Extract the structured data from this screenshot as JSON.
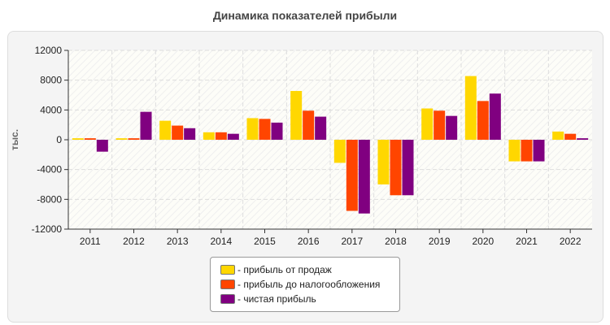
{
  "chart_data": {
    "type": "bar",
    "title": "Динамика показателей прибыли",
    "ylabel": "тыс.",
    "xlabel": "",
    "ylim": [
      -12000,
      12000
    ],
    "yticks": [
      12000,
      8000,
      4000,
      0,
      -4000,
      -8000,
      -12000
    ],
    "grid": true,
    "legend_position": "bottom",
    "categories": [
      "2011",
      "2012",
      "2013",
      "2014",
      "2015",
      "2016",
      "2017",
      "2018",
      "2019",
      "2020",
      "2021",
      "2022"
    ],
    "series": [
      {
        "name": "- прибыль от продаж",
        "color": "#FFD700",
        "values": [
          200,
          200,
          2550,
          1000,
          2900,
          6550,
          -3100,
          -6000,
          4200,
          8550,
          -2900,
          1100
        ]
      },
      {
        "name": "- прибыль до налогообложения",
        "color": "#FF4500",
        "values": [
          200,
          200,
          1900,
          1000,
          2800,
          3900,
          -9550,
          -7450,
          3900,
          5200,
          -2900,
          800
        ]
      },
      {
        "name": "- чистая прибыль",
        "color": "#800080",
        "values": [
          -1600,
          3750,
          1550,
          800,
          2300,
          3100,
          -9900,
          -7450,
          3200,
          6200,
          -2900,
          200
        ]
      }
    ]
  }
}
